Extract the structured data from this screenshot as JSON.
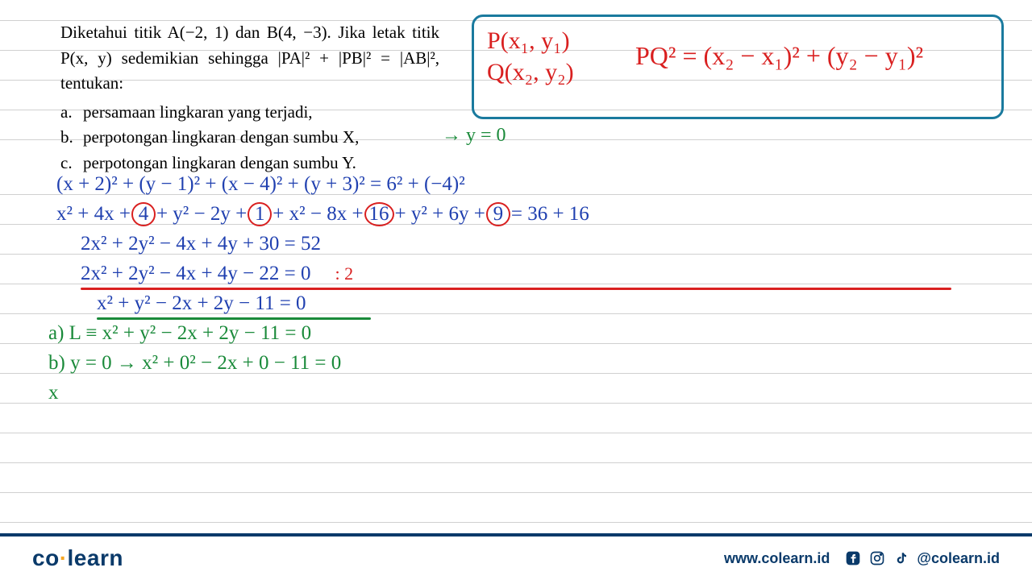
{
  "problem": {
    "main": "Diketahui titik A(−2, 1) dan B(4, −3). Jika letak titik P(x, y) sedemikian sehingga |PA|² + |PB|² = |AB|², tentukan:",
    "items": [
      {
        "label": "a.",
        "text": "persamaan lingkaran yang terjadi,"
      },
      {
        "label": "b.",
        "text": "perpotongan lingkaran dengan sumbu X,"
      },
      {
        "label": "c.",
        "text": "perpotongan lingkaran dengan sumbu Y."
      }
    ]
  },
  "formula_box": {
    "p": "P(x₁, y₁)",
    "q": "Q(x₂, y₂)",
    "eq": "PQ² = (x₂ − x₁)² + (y₂ − y₁)²",
    "border_color": "#1a7a9e",
    "text_color": "#d92020"
  },
  "annotation_b": "→ y = 0",
  "work_lines": [
    {
      "color": "blue",
      "indent": "indent1",
      "text": "(x + 2)² + (y − 1)² + (x − 4)² + (y + 3)² = 6² + (−4)²"
    },
    {
      "color": "blue",
      "indent": "indent1",
      "text_parts": [
        "x² + 4x + ",
        {
          "circle": "4"
        },
        " + y² − 2y + ",
        {
          "circle": "1"
        },
        " + x² − 8x + ",
        {
          "circle": "16"
        },
        " + y² + 6y + ",
        {
          "circle": "9"
        },
        " = 36 + 16"
      ]
    },
    {
      "color": "blue",
      "indent": "indent2",
      "text": "2x² + 2y² − 4x + 4y + 30 = 52"
    },
    {
      "color": "blue",
      "indent": "indent2",
      "underline": "red",
      "text": "2x² + 2y² − 4x + 4y − 22 = 0",
      "suffix": ": 2"
    },
    {
      "color": "blue",
      "indent": "indent3",
      "underline": "green",
      "text": "x² + y² − 2x + 2y − 11 = 0"
    },
    {
      "color": "green",
      "indent": "indent-a",
      "text": "a)  L ≡  x² + y² − 2x + 2y − 11 = 0"
    },
    {
      "color": "green",
      "indent": "indent-a",
      "text": "b)  y = 0  →  x² + 0² − 2x + 0 − 11 = 0"
    },
    {
      "color": "green",
      "indent": "indent-a",
      "text": "                        x"
    }
  ],
  "footer": {
    "logo_co": "co",
    "logo_learn": "learn",
    "url": "www.colearn.id",
    "handle": "@colearn.id"
  },
  "colors": {
    "blue": "#2040b0",
    "red": "#d92020",
    "green": "#1a8a3a",
    "navy": "#0a3a6a",
    "orange": "#f5a623"
  }
}
